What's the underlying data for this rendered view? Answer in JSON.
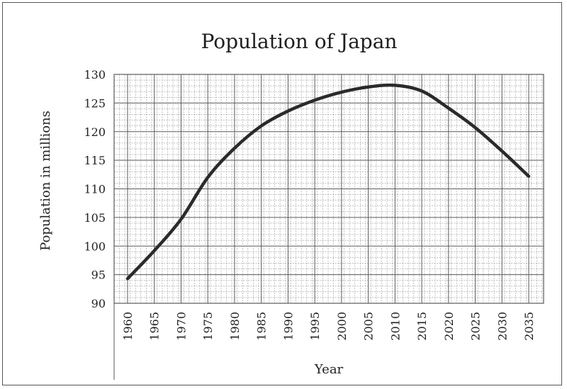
{
  "chart_data": {
    "type": "line",
    "title": "Population of Japan",
    "xlabel": "Year",
    "ylabel": "Population in millions",
    "categories": [
      "1960",
      "1965",
      "1970",
      "1975",
      "1980",
      "1985",
      "1990",
      "1995",
      "2000",
      "2005",
      "2010",
      "2015",
      "2020",
      "2025",
      "2030",
      "2035"
    ],
    "series": [
      {
        "values": [
          94.3,
          99.2,
          104.7,
          112.0,
          117.1,
          121.0,
          123.6,
          125.5,
          126.9,
          127.8,
          128.1,
          127.1,
          124.1,
          120.7,
          116.6,
          112.2
        ]
      }
    ],
    "ylim": [
      90,
      130
    ],
    "yticks": [
      90,
      95,
      100,
      105,
      110,
      115,
      120,
      125,
      130
    ],
    "grid": true,
    "colors": {
      "line": "#2a2a2a",
      "grid_major": "#5a5a5a",
      "grid_minor": "#9a9a9a",
      "text": "#222222"
    }
  }
}
